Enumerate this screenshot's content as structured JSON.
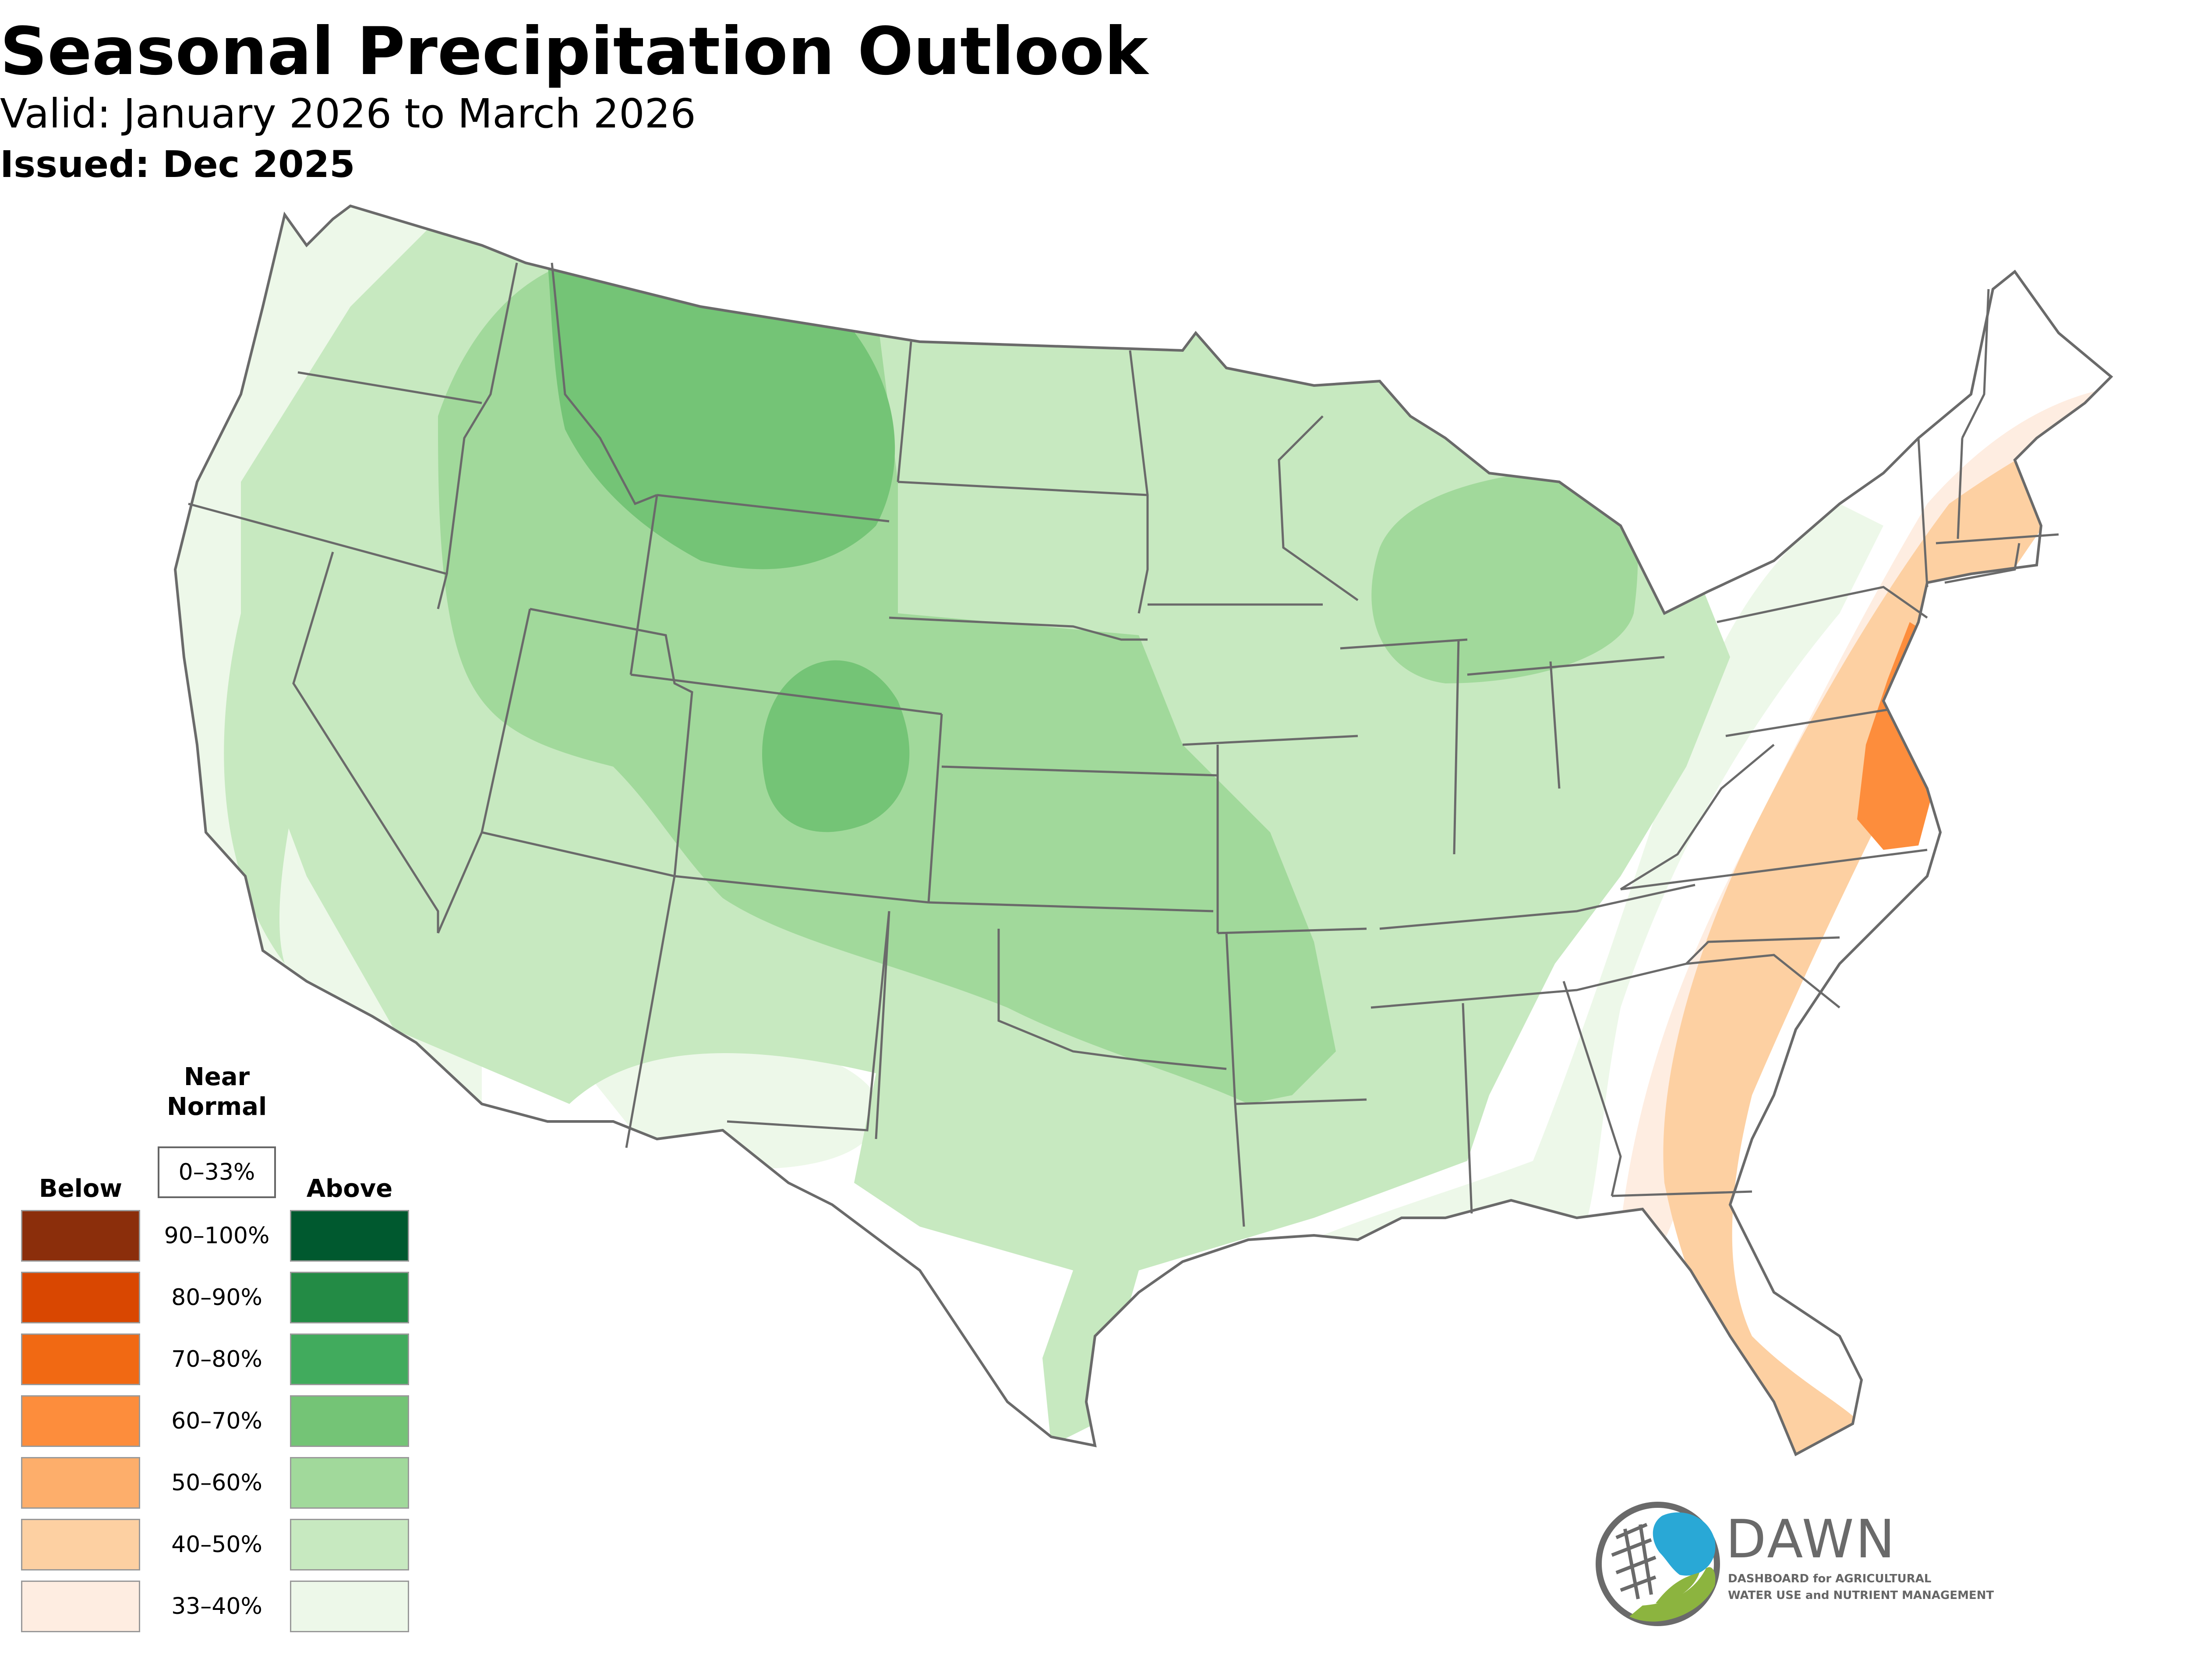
{
  "title": "Seasonal Precipitation Outlook",
  "valid_text": "Valid: January 2026 to March 2026",
  "issued_text": "Issued: Dec 2025",
  "legend": {
    "near_normal_heading_1": "Near",
    "near_normal_heading_2": "Normal",
    "near_normal_range": "0–33%",
    "below_heading": "Below",
    "above_heading": "Above",
    "ranges": [
      "90–100%",
      "80–90%",
      "70–80%",
      "60–70%",
      "50–60%",
      "40–50%",
      "33–40%"
    ],
    "below_colors": [
      "#8b2e0b",
      "#d94701",
      "#f16913",
      "#fd8d3c",
      "#fdae6b",
      "#fdd0a2",
      "#feede1"
    ],
    "above_colors": [
      "#00592f",
      "#238b45",
      "#41ab5d",
      "#74c476",
      "#a1d99b",
      "#c7e9c0",
      "#edf8e9"
    ]
  },
  "regions": {
    "northern_rockies_high": "60–70%",
    "colorado_high": "60–70%",
    "great_lakes": "50–60%",
    "broad_west_central": "40–50%",
    "southeast_coast_below": "40–50%",
    "mid_atlantic_below": "60–70%"
  },
  "logo": {
    "word": "DAWN",
    "subtitle_line1": "DASHBOARD for AGRICULTURAL",
    "subtitle_line2": "WATER USE and NUTRIENT MANAGEMENT",
    "blue": "#29a8d6",
    "green": "#8cb43f",
    "gray": "#6a6a6a"
  }
}
